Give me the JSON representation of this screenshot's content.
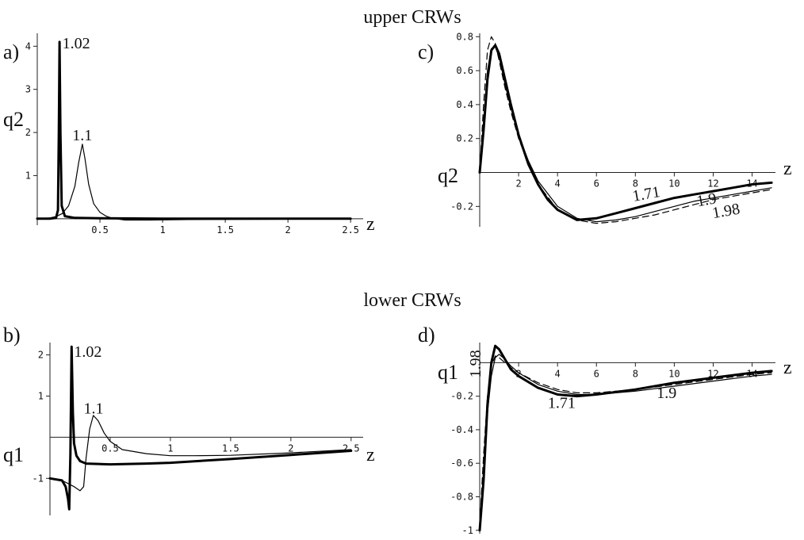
{
  "figure": {
    "upper_title": "upper  CRWs",
    "lower_title": "lower  CRWs"
  },
  "chart_data": [
    {
      "panel": "a)",
      "type": "line",
      "xlabel": "z",
      "ylabel": "q2",
      "xlim": [
        0.0,
        2.6
      ],
      "ylim": [
        -0.15,
        4.3
      ],
      "xticks": [
        0.5,
        1,
        1.5,
        2,
        2.5
      ],
      "xtick_labels": [
        "0.5",
        "1",
        "1.5",
        "2",
        "2.5"
      ],
      "yticks": [
        1,
        2,
        3,
        4
      ],
      "ytick_labels": [
        "1",
        "2",
        "3",
        "4"
      ],
      "series": [
        {
          "name": "1.02",
          "weight": "thick",
          "dash": "",
          "x": [
            0.0,
            0.1,
            0.15,
            0.165,
            0.172,
            0.178,
            0.185,
            0.195,
            0.22,
            0.3,
            0.5,
            1.0,
            2.5
          ],
          "y": [
            0.0,
            0.0,
            0.02,
            0.2,
            2.0,
            4.1,
            2.0,
            0.3,
            0.06,
            0.02,
            0.01,
            0.0,
            0.0
          ]
        },
        {
          "name": "1.1",
          "weight": "thin",
          "dash": "",
          "x": [
            0.0,
            0.1,
            0.15,
            0.2,
            0.25,
            0.3,
            0.33,
            0.36,
            0.38,
            0.41,
            0.45,
            0.5,
            0.55,
            0.6,
            0.7,
            0.9,
            1.2,
            2.0,
            2.5
          ],
          "y": [
            0.0,
            0.02,
            0.05,
            0.12,
            0.3,
            0.75,
            1.3,
            1.73,
            1.4,
            0.8,
            0.35,
            0.15,
            0.06,
            0.01,
            -0.03,
            -0.03,
            -0.02,
            -0.01,
            -0.01
          ]
        }
      ],
      "labels": [
        {
          "text": "1.02",
          "x": 0.2,
          "y": 3.95
        },
        {
          "text": "1.1",
          "x": 0.28,
          "y": 1.82
        }
      ]
    },
    {
      "panel": "c)",
      "type": "line",
      "xlabel": "z",
      "ylabel": "q2",
      "xlim": [
        0.0,
        15.2
      ],
      "ylim": [
        -0.32,
        0.82
      ],
      "xticks": [
        2,
        4,
        6,
        8,
        10,
        12,
        14
      ],
      "xtick_labels": [
        "2",
        "4",
        "6",
        "8",
        "10",
        "12",
        "14"
      ],
      "yticks": [
        -0.2,
        0.2,
        0.4,
        0.6,
        0.8
      ],
      "ytick_labels": [
        "-0.2",
        "0.2",
        "0.4",
        "0.6",
        "0.8"
      ],
      "series": [
        {
          "name": "1.71",
          "weight": "thick",
          "dash": "",
          "x": [
            0.0,
            0.2,
            0.4,
            0.6,
            0.8,
            1.0,
            1.3,
            1.6,
            2.0,
            2.5,
            3.0,
            3.5,
            4.0,
            5.0,
            6.0,
            7.0,
            8.0,
            9.0,
            10.0,
            11.0,
            12.0,
            13.0,
            14.0,
            15.0
          ],
          "y": [
            0.0,
            0.25,
            0.55,
            0.72,
            0.75,
            0.7,
            0.55,
            0.4,
            0.22,
            0.05,
            -0.07,
            -0.16,
            -0.22,
            -0.28,
            -0.27,
            -0.24,
            -0.21,
            -0.18,
            -0.15,
            -0.13,
            -0.11,
            -0.09,
            -0.07,
            -0.06
          ]
        },
        {
          "name": "1.9",
          "weight": "thin",
          "dash": "",
          "x": [
            0.0,
            0.2,
            0.4,
            0.6,
            0.8,
            1.0,
            1.3,
            1.6,
            2.0,
            2.5,
            3.0,
            4.0,
            5.0,
            6.0,
            7.0,
            8.0,
            9.0,
            10.0,
            11.0,
            12.0,
            13.0,
            14.0,
            15.0
          ],
          "y": [
            0.0,
            0.3,
            0.6,
            0.73,
            0.74,
            0.68,
            0.52,
            0.38,
            0.22,
            0.07,
            -0.05,
            -0.2,
            -0.27,
            -0.29,
            -0.28,
            -0.26,
            -0.23,
            -0.2,
            -0.17,
            -0.15,
            -0.13,
            -0.11,
            -0.09
          ]
        },
        {
          "name": "1.98",
          "weight": "thin",
          "dash": "8,5",
          "x": [
            0.0,
            0.2,
            0.4,
            0.6,
            0.8,
            1.0,
            1.3,
            1.6,
            2.0,
            2.5,
            3.0,
            4.0,
            5.0,
            6.0,
            7.0,
            8.0,
            9.0,
            10.0,
            11.0,
            12.0,
            13.0,
            14.0,
            15.0
          ],
          "y": [
            0.0,
            0.4,
            0.72,
            0.8,
            0.76,
            0.66,
            0.5,
            0.36,
            0.2,
            0.05,
            -0.07,
            -0.22,
            -0.28,
            -0.3,
            -0.29,
            -0.27,
            -0.25,
            -0.22,
            -0.19,
            -0.16,
            -0.14,
            -0.12,
            -0.1
          ]
        }
      ],
      "labels": [
        {
          "text": "1.71",
          "x": 7.9,
          "y": -0.17,
          "rotate": -10
        },
        {
          "text": "1.9",
          "x": 11.2,
          "y": -0.2,
          "rotate": -10
        },
        {
          "text": "1.98",
          "x": 12.0,
          "y": -0.27,
          "rotate": -10
        }
      ]
    },
    {
      "panel": "b)",
      "type": "line",
      "xlabel": "z",
      "ylabel": "q1",
      "xlim": [
        0.0,
        2.6
      ],
      "ylim": [
        -1.9,
        2.3
      ],
      "xticks": [
        0.5,
        1,
        1.5,
        2,
        2.5
      ],
      "xtick_labels": [
        "0.5",
        "1",
        "1.5",
        "2",
        "2.5"
      ],
      "yticks": [
        -1,
        1,
        2
      ],
      "ytick_labels": [
        "-1",
        "1",
        "2"
      ],
      "series": [
        {
          "name": "1.02",
          "weight": "thick",
          "dash": "",
          "x": [
            0.0,
            0.1,
            0.13,
            0.15,
            0.16,
            0.17,
            0.18,
            0.19,
            0.2,
            0.22,
            0.25,
            0.3,
            0.5,
            0.8,
            1.0,
            1.5,
            2.0,
            2.5
          ],
          "y": [
            -1.0,
            -1.05,
            -1.2,
            -1.5,
            -1.75,
            -0.4,
            2.2,
            0.6,
            -0.15,
            -0.45,
            -0.58,
            -0.64,
            -0.66,
            -0.64,
            -0.62,
            -0.53,
            -0.43,
            -0.33
          ]
        },
        {
          "name": "1.1",
          "weight": "thin",
          "dash": "",
          "x": [
            0.0,
            0.1,
            0.2,
            0.25,
            0.28,
            0.3,
            0.33,
            0.36,
            0.4,
            0.45,
            0.5,
            0.6,
            0.8,
            1.0,
            1.2,
            1.5,
            2.0,
            2.5
          ],
          "y": [
            -1.0,
            -1.05,
            -1.2,
            -1.3,
            -1.2,
            -0.5,
            0.2,
            0.53,
            0.4,
            0.1,
            -0.1,
            -0.3,
            -0.4,
            -0.45,
            -0.45,
            -0.44,
            -0.38,
            -0.3
          ]
        }
      ],
      "labels": [
        {
          "text": "1.02",
          "x": 0.2,
          "y": 1.95
        },
        {
          "text": "1.1",
          "x": 0.28,
          "y": 0.58
        }
      ]
    },
    {
      "panel": "d)",
      "type": "line",
      "xlabel": "z",
      "ylabel": "q1",
      "xlim": [
        0.0,
        15.2
      ],
      "ylim": [
        -1.02,
        0.12
      ],
      "xticks": [
        2,
        4,
        6,
        8,
        10,
        12,
        14
      ],
      "xtick_labels": [
        "2",
        "4",
        "6",
        "8",
        "10",
        "12",
        "14"
      ],
      "yticks": [
        -1,
        -0.8,
        -0.6,
        -0.4,
        -0.2
      ],
      "ytick_labels": [
        "-1",
        "-0.8",
        "-0.6",
        "-0.4",
        "-0.2"
      ],
      "series": [
        {
          "name": "1.71",
          "weight": "thick",
          "dash": "",
          "x": [
            0.0,
            0.2,
            0.4,
            0.6,
            0.8,
            1.0,
            1.3,
            1.6,
            2.0,
            3.0,
            4.0,
            5.0,
            6.0,
            8.0,
            10.0,
            12.0,
            14.0,
            15.0
          ],
          "y": [
            -1.0,
            -0.7,
            -0.25,
            0.0,
            0.1,
            0.08,
            0.02,
            -0.04,
            -0.08,
            -0.15,
            -0.19,
            -0.2,
            -0.19,
            -0.16,
            -0.12,
            -0.09,
            -0.06,
            -0.05
          ]
        },
        {
          "name": "1.9",
          "weight": "thin",
          "dash": "",
          "x": [
            0.0,
            0.2,
            0.4,
            0.6,
            0.8,
            1.0,
            1.3,
            1.6,
            2.0,
            3.0,
            4.0,
            5.0,
            6.0,
            8.0,
            10.0,
            12.0,
            14.0,
            15.0
          ],
          "y": [
            -1.0,
            -0.65,
            -0.3,
            -0.08,
            0.03,
            0.05,
            0.02,
            -0.02,
            -0.06,
            -0.13,
            -0.17,
            -0.19,
            -0.19,
            -0.17,
            -0.14,
            -0.11,
            -0.08,
            -0.07
          ]
        },
        {
          "name": "1.98",
          "weight": "thin",
          "dash": "8,5",
          "x": [
            0.0,
            0.2,
            0.4,
            0.6,
            0.8,
            1.0,
            1.3,
            1.6,
            2.0,
            3.0,
            4.0,
            5.0,
            6.0,
            8.0,
            10.0,
            12.0,
            14.0,
            15.0
          ],
          "y": [
            -0.97,
            -0.55,
            -0.2,
            -0.02,
            0.04,
            0.03,
            0.0,
            -0.03,
            -0.06,
            -0.12,
            -0.16,
            -0.18,
            -0.18,
            -0.16,
            -0.13,
            -0.1,
            -0.07,
            -0.06
          ]
        }
      ],
      "labels": [
        {
          "text": "1.98",
          "x": 0.05,
          "y": -0.09,
          "rotate": -90
        },
        {
          "text": "1.71",
          "x": 3.5,
          "y": -0.27
        },
        {
          "text": "1.9",
          "x": 9.1,
          "y": -0.21
        }
      ]
    }
  ]
}
